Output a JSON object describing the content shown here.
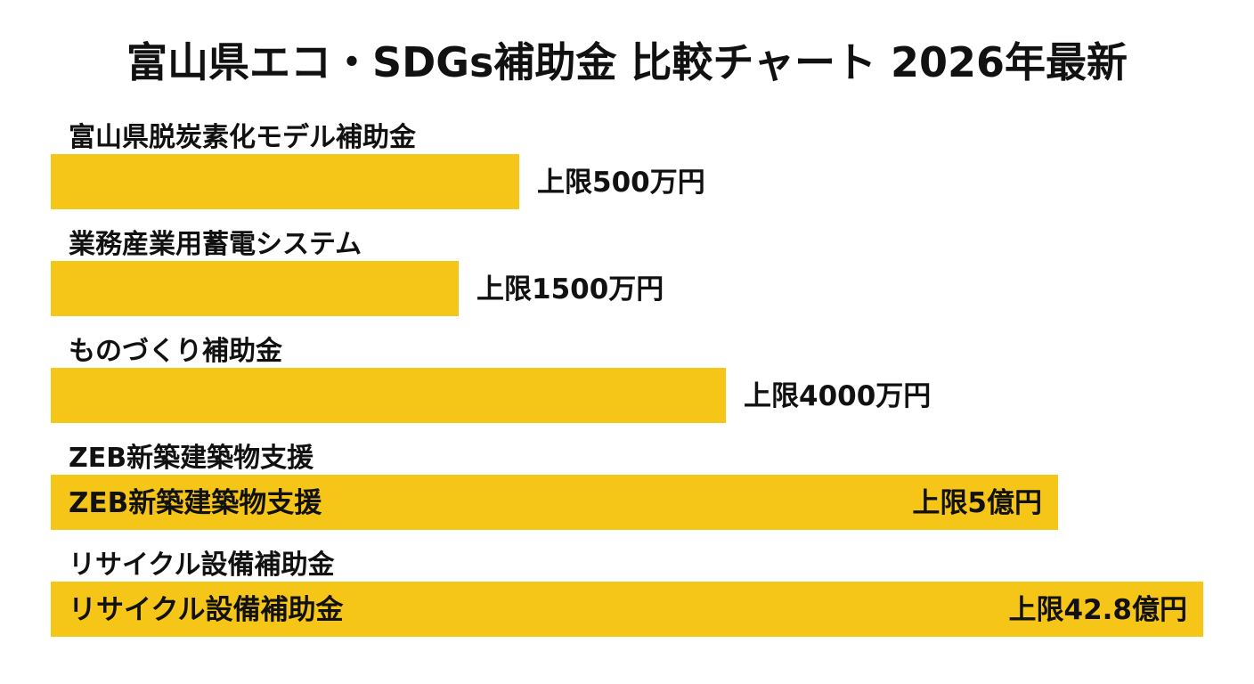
{
  "chart_data": {
    "type": "bar",
    "orientation": "horizontal",
    "title": "富山県エコ・SDGs補助金 比較チャート 2026年最新",
    "xlabel": "",
    "ylabel": "",
    "grid": false,
    "legend": "none",
    "bar_color": "#F5C518",
    "categories": [
      "富山県脱炭素化モデル補助金",
      "業務産業用蓄電システム",
      "ものづくり補助金",
      "ZEB新築建築物支援",
      "リサイクル設備補助金"
    ],
    "values": [
      500,
      1500,
      4000,
      50000,
      428000
    ],
    "unit": "万円",
    "value_labels": [
      "上限500万円",
      "上限1500万円",
      "上限4000万円",
      "上限5億円",
      "上限42.8億円"
    ],
    "in_bar_labels": [
      "",
      "",
      "",
      "ZEB新築建築物支援",
      "リサイクル設備補助金"
    ]
  }
}
